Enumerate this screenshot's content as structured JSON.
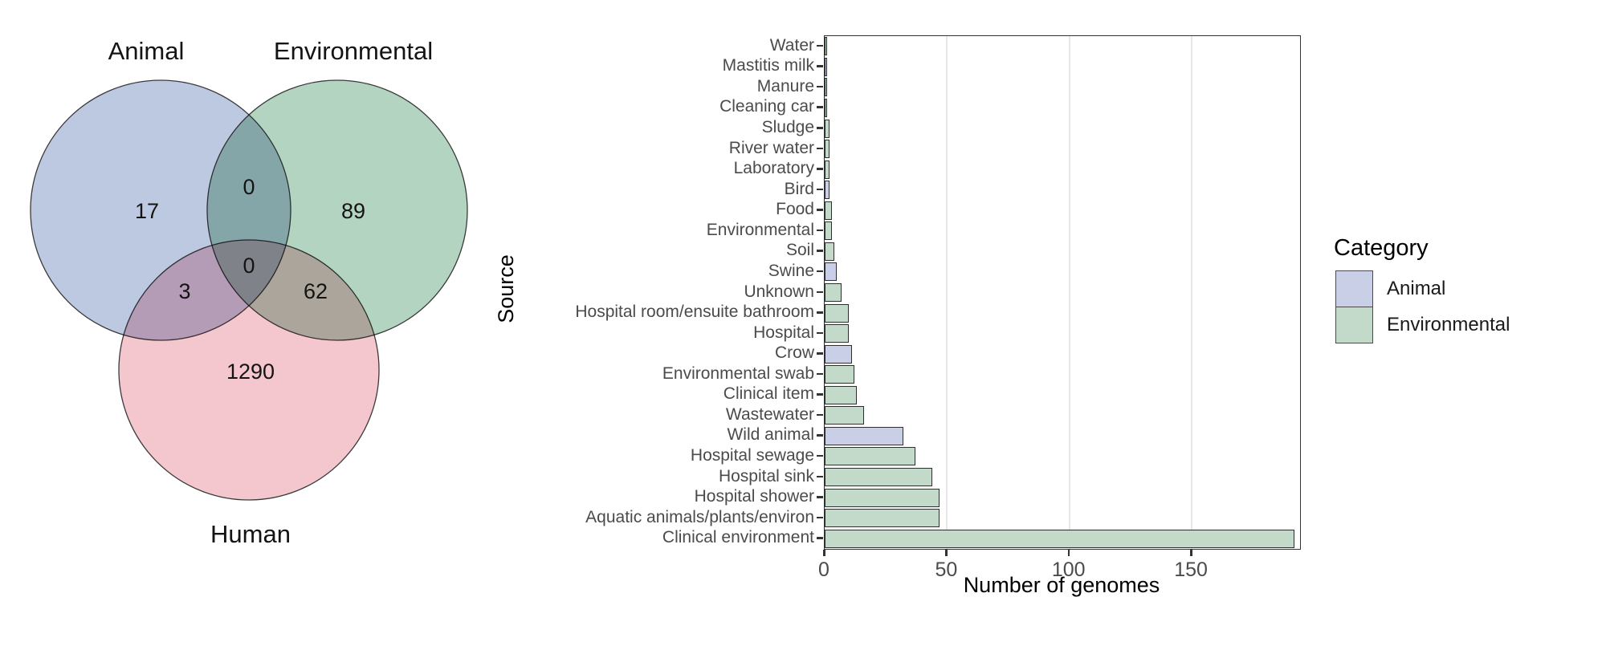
{
  "chart_data": [
    {
      "type": "venn",
      "sets": [
        {
          "label": "Animal",
          "color": "#bdc8e1"
        },
        {
          "label": "Environmental",
          "color": "#b3d4c0"
        },
        {
          "label": "Human",
          "color": "#f4c7ce"
        }
      ],
      "regions": [
        {
          "sets": [
            "Animal"
          ],
          "value": 17
        },
        {
          "sets": [
            "Environmental"
          ],
          "value": 89
        },
        {
          "sets": [
            "Human"
          ],
          "value": 1290
        },
        {
          "sets": [
            "Animal",
            "Environmental"
          ],
          "value": 0
        },
        {
          "sets": [
            "Animal",
            "Human"
          ],
          "value": 3
        },
        {
          "sets": [
            "Environmental",
            "Human"
          ],
          "value": 62
        },
        {
          "sets": [
            "Animal",
            "Environmental",
            "Human"
          ],
          "value": 0
        }
      ],
      "outline_color": "#3a3a3a"
    },
    {
      "type": "bar",
      "orientation": "horizontal",
      "categories": [
        "Water",
        "Mastitis milk",
        "Manure",
        "Cleaning car",
        "Sludge",
        "River water",
        "Laboratory",
        "Bird",
        "Food",
        "Environmental",
        "Soil",
        "Swine",
        "Unknown",
        "Hospital room/ensuite bathroom",
        "Hospital",
        "Crow",
        "Environmental swab",
        "Clinical item",
        "Wastewater",
        "Wild animal",
        "Hospital sewage",
        "Hospital sink",
        "Hospital shower",
        "Aquatic animals/plants/environ",
        "Clinical environment"
      ],
      "values": [
        1,
        1,
        1,
        1,
        2,
        2,
        2,
        2,
        3,
        3,
        4,
        5,
        7,
        10,
        10,
        11,
        12,
        13,
        16,
        32,
        37,
        44,
        47,
        47,
        192
      ],
      "bar_categories": [
        "Environmental",
        "Animal",
        "Environmental",
        "Environmental",
        "Environmental",
        "Environmental",
        "Environmental",
        "Animal",
        "Environmental",
        "Environmental",
        "Environmental",
        "Animal",
        "Environmental",
        "Environmental",
        "Environmental",
        "Animal",
        "Environmental",
        "Environmental",
        "Environmental",
        "Animal",
        "Environmental",
        "Environmental",
        "Environmental",
        "Environmental",
        "Environmental"
      ],
      "category_colors": {
        "Animal": "#c9cfe7",
        "Environmental": "#c3d9c9"
      },
      "bar_outline_color": "#2e2e2e",
      "xlabel": "Number of genomes",
      "ylabel": "Source",
      "xlim": [
        0,
        194
      ],
      "xticks": [
        0,
        50,
        100,
        150
      ],
      "grid": "vertical major gridlines only, light gray, panel framed",
      "legend": {
        "title": "Category",
        "position": "right",
        "entries": [
          {
            "label": "Animal",
            "color": "#c9cfe7"
          },
          {
            "label": "Environmental",
            "color": "#c3d9c9"
          }
        ]
      }
    }
  ]
}
